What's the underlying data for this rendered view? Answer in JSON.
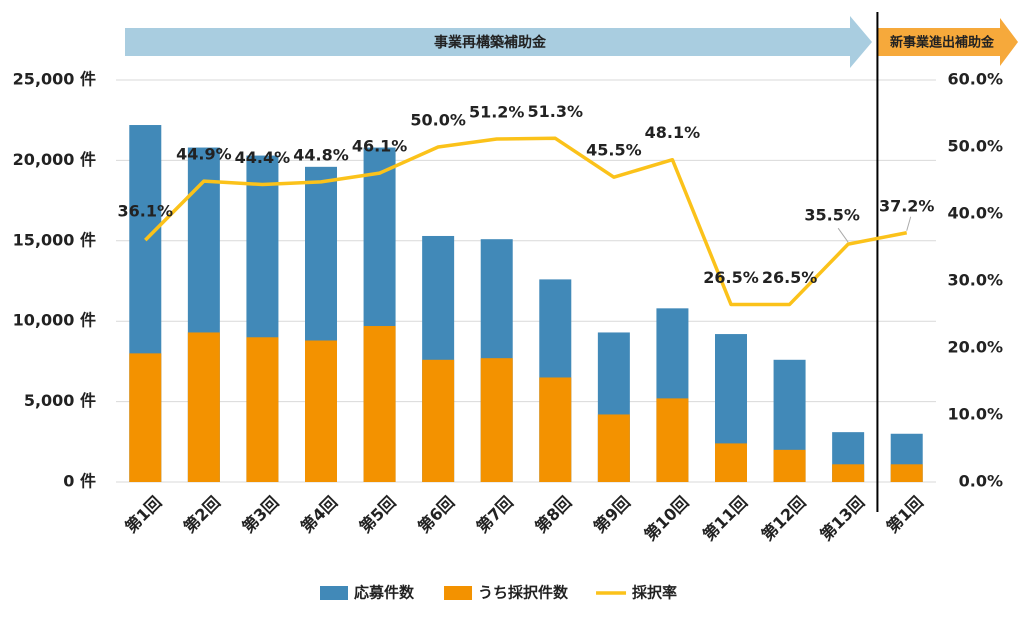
{
  "banners": [
    "事業再構築補助金",
    "新事業進出補助金"
  ],
  "chart_data": {
    "type": "bar-line",
    "categories": [
      "第1回",
      "第2回",
      "第3回",
      "第4回",
      "第5回",
      "第6回",
      "第7回",
      "第8回",
      "第9回",
      "第10回",
      "第11回",
      "第12回",
      "第13回",
      "第1回"
    ],
    "series": [
      {
        "name": "応募件数",
        "type": "bar",
        "color": "#4189b8",
        "values": [
          22200,
          20800,
          20300,
          19600,
          20800,
          15300,
          15100,
          12600,
          9300,
          10800,
          9200,
          7600,
          3100,
          3000
        ]
      },
      {
        "name": "うち採択件数",
        "type": "bar",
        "color": "#f39200",
        "values": [
          8000,
          9300,
          9000,
          8800,
          9700,
          7600,
          7700,
          6500,
          4200,
          5200,
          2400,
          2000,
          1100,
          1100
        ]
      },
      {
        "name": "採択率",
        "type": "line",
        "color": "#fbc21a",
        "axis": "y2",
        "values": [
          36.1,
          44.9,
          44.4,
          44.8,
          46.1,
          50.0,
          51.2,
          51.3,
          45.5,
          48.1,
          26.5,
          26.5,
          35.5,
          37.2
        ],
        "value_labels": [
          "36.1%",
          "44.9%",
          "44.4%",
          "44.8%",
          "46.1%",
          "50.0%",
          "51.2%",
          "51.3%",
          "45.5%",
          "48.1%",
          "26.5%",
          "26.5%",
          "35.5%",
          "37.2%"
        ]
      }
    ],
    "ylim": [
      0,
      25000
    ],
    "yticks": [
      {
        "value": 0,
        "label": "0 件"
      },
      {
        "value": 5000,
        "label": "5,000 件"
      },
      {
        "value": 10000,
        "label": "10,000 件"
      },
      {
        "value": 15000,
        "label": "15,000 件"
      },
      {
        "value": 20000,
        "label": "20,000 件"
      },
      {
        "value": 25000,
        "label": "25,000 件"
      }
    ],
    "y2lim": [
      0,
      60
    ],
    "y2ticks": [
      {
        "value": 0,
        "label": "0.0%"
      },
      {
        "value": 10,
        "label": "10.0%"
      },
      {
        "value": 20,
        "label": "20.0%"
      },
      {
        "value": 30,
        "label": "30.0%"
      },
      {
        "value": 40,
        "label": "40.0%"
      },
      {
        "value": 50,
        "label": "50.0%"
      },
      {
        "value": 60,
        "label": "60.0%"
      }
    ],
    "grid": true
  }
}
